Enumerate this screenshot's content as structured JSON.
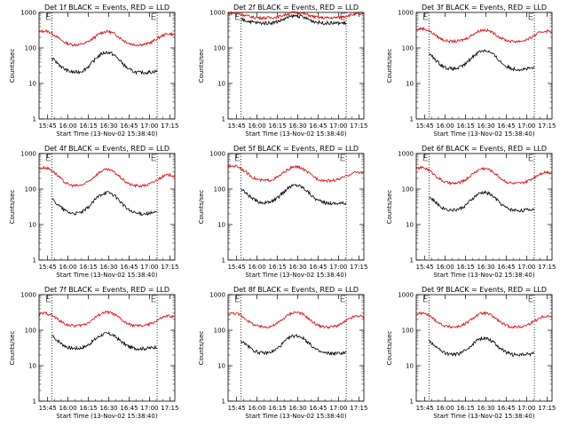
{
  "chart_data": {
    "type": "line",
    "x_label": "Start Time (13-Nov-02 15:38:40)",
    "y_label": "Counts/sec",
    "x_ticks": [
      "15:45",
      "16:00",
      "16:15",
      "16:30",
      "16:45",
      "17:00",
      "17:15"
    ],
    "x_tick_minutes": [
      6.33,
      21.33,
      36.33,
      51.33,
      66.33,
      81.33,
      96.33
    ],
    "x_range_minutes": [
      0,
      100
    ],
    "y_scale": "log",
    "y_range": [
      1,
      1000
    ],
    "y_ticks": [
      "1",
      "10",
      "100",
      "1000"
    ],
    "vlines_minutes": [
      9.5,
      87
    ],
    "series_colors": {
      "events": "#000000",
      "lld": "#e00000"
    },
    "panels": [
      {
        "title": "Det 1f BLACK = Events, RED = LLD",
        "lld": {
          "base": 120,
          "peaks": [
            300,
            290,
            250
          ]
        },
        "events": {
          "base": 20,
          "peaks": [
            60,
            75,
            25
          ]
        }
      },
      {
        "title": "Det 2f BLACK = Events, RED = LLD",
        "lld": {
          "base": 700,
          "peaks": [
            950,
            1000,
            900
          ]
        },
        "events": {
          "base": 500,
          "peaks": [
            700,
            800,
            500
          ]
        }
      },
      {
        "title": "Det 3f BLACK = Events, RED = LLD",
        "lld": {
          "base": 150,
          "peaks": [
            350,
            320,
            300
          ]
        },
        "events": {
          "base": 25,
          "peaks": [
            80,
            85,
            30
          ]
        }
      },
      {
        "title": "Det 4f BLACK = Events, RED = LLD",
        "lld": {
          "base": 120,
          "peaks": [
            400,
            350,
            250
          ]
        },
        "events": {
          "base": 20,
          "peaks": [
            60,
            80,
            25
          ]
        }
      },
      {
        "title": "Det 5f BLACK = Events, RED = LLD",
        "lld": {
          "base": 170,
          "peaks": [
            450,
            420,
            300
          ]
        },
        "events": {
          "base": 40,
          "peaks": [
            120,
            130,
            40
          ]
        }
      },
      {
        "title": "Det 6f BLACK = Events, RED = LLD",
        "lld": {
          "base": 140,
          "peaks": [
            400,
            380,
            300
          ]
        },
        "events": {
          "base": 25,
          "peaks": [
            70,
            80,
            30
          ]
        }
      },
      {
        "title": "Det 7f BLACK = Events, RED = LLD",
        "lld": {
          "base": 130,
          "peaks": [
            300,
            320,
            250
          ]
        },
        "events": {
          "base": 30,
          "peaks": [
            80,
            80,
            40
          ]
        }
      },
      {
        "title": "Det 8f BLACK = Events, RED = LLD",
        "lld": {
          "base": 120,
          "peaks": [
            300,
            320,
            250
          ]
        },
        "events": {
          "base": 22,
          "peaks": [
            60,
            70,
            25
          ]
        }
      },
      {
        "title": "Det 9f BLACK = Events, RED = LLD",
        "lld": {
          "base": 120,
          "peaks": [
            300,
            300,
            250
          ]
        },
        "events": {
          "base": 20,
          "peaks": [
            60,
            60,
            25
          ]
        }
      }
    ]
  }
}
